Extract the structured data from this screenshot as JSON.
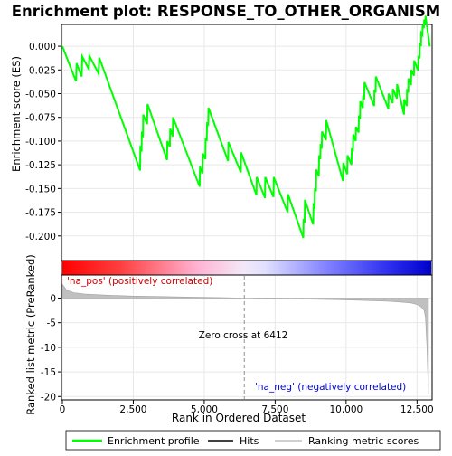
{
  "chart_data": {
    "type": "line",
    "title": "Enrichment plot: RESPONSE_TO_OTHER_ORGANISM",
    "xlabel": "Rank in Ordered Dataset",
    "ylabel_top": "Enrichment score (ES)",
    "ylabel_bottom": "Ranked list metric (PreRanked)",
    "x_range": [
      0,
      13000
    ],
    "x_ticks": [
      0,
      2500,
      5000,
      7500,
      10000,
      12500
    ],
    "x_tick_labels": [
      "0",
      "2,500",
      "5,000",
      "7,500",
      "10,000",
      "12,500"
    ],
    "es_ylim": [
      -0.225,
      0.022
    ],
    "es_ticks": [
      0.0,
      -0.025,
      -0.05,
      -0.075,
      -0.1,
      -0.125,
      -0.15,
      -0.175,
      -0.2
    ],
    "es_tick_labels": [
      "0.000",
      "-0.025",
      "-0.050",
      "-0.075",
      "-0.100",
      "-0.125",
      "-0.150",
      "-0.175",
      "-0.200"
    ],
    "metric_ylim": [
      -20.5,
      4.5
    ],
    "metric_ticks": [
      0,
      -5,
      -10,
      -15,
      -20
    ],
    "metric_tick_labels": [
      "0",
      "-5",
      "-10",
      "-15",
      "-20"
    ],
    "zero_cross_rank": 6412,
    "annotations": {
      "pos_label": "'na_pos' (positively correlated)",
      "neg_label": "'na_neg' (negatively correlated)",
      "zero_cross_label": "Zero cross at 6412"
    },
    "hits": [
      500,
      700,
      950,
      1300,
      2750,
      2800,
      2850,
      3000,
      3700,
      3800,
      3900,
      4850,
      4950,
      5050,
      5100,
      5150,
      5850,
      6300,
      6850,
      7150,
      7450,
      7950,
      8500,
      8550,
      8850,
      8900,
      8950,
      9050,
      9100,
      9150,
      9300,
      9900,
      10050,
      10200,
      10250,
      10350,
      10450,
      10500,
      10600,
      10650,
      11000,
      11050,
      11500,
      11650,
      11800,
      12050,
      12150,
      12200,
      12300,
      12400,
      12550,
      12600,
      12650,
      12700,
      12750,
      12800
    ],
    "es_profile": {
      "x": [
        0,
        480,
        500,
        680,
        700,
        930,
        950,
        1280,
        1300,
        2740,
        2750,
        2790,
        2800,
        2840,
        2850,
        2990,
        3000,
        3690,
        3700,
        3790,
        3800,
        3890,
        3900,
        4840,
        4850,
        4940,
        4950,
        5040,
        5050,
        5090,
        5100,
        5140,
        5150,
        5840,
        5850,
        6290,
        6300,
        6840,
        6850,
        7140,
        7150,
        7440,
        7450,
        7940,
        7950,
        8490,
        8500,
        8540,
        8550,
        8840,
        8850,
        8890,
        8900,
        8940,
        8950,
        9040,
        9050,
        9090,
        9100,
        9140,
        9150,
        9290,
        9300,
        9890,
        9900,
        10040,
        10050,
        10190,
        10200,
        10240,
        10250,
        10340,
        10350,
        10440,
        10450,
        10490,
        10500,
        10590,
        10600,
        10640,
        10650,
        10990,
        11000,
        11040,
        11050,
        11490,
        11500,
        11640,
        11650,
        11790,
        11800,
        12040,
        12050,
        12140,
        12150,
        12190,
        12200,
        12290,
        12300,
        12390,
        12400,
        12540,
        12550,
        12590,
        12600,
        12640,
        12650,
        12690,
        12700,
        12740,
        12750,
        12790,
        12800,
        12950
      ],
      "y": [
        0.0,
        -0.037,
        -0.018,
        -0.032,
        -0.011,
        -0.024,
        -0.01,
        -0.029,
        -0.012,
        -0.131,
        -0.105,
        -0.111,
        -0.09,
        -0.096,
        -0.072,
        -0.082,
        -0.061,
        -0.12,
        -0.1,
        -0.106,
        -0.087,
        -0.095,
        -0.075,
        -0.148,
        -0.127,
        -0.134,
        -0.113,
        -0.119,
        -0.097,
        -0.1,
        -0.08,
        -0.084,
        -0.065,
        -0.121,
        -0.101,
        -0.133,
        -0.112,
        -0.157,
        -0.138,
        -0.16,
        -0.138,
        -0.159,
        -0.138,
        -0.175,
        -0.156,
        -0.202,
        -0.182,
        -0.186,
        -0.162,
        -0.188,
        -0.168,
        -0.17,
        -0.15,
        -0.153,
        -0.13,
        -0.137,
        -0.115,
        -0.119,
        -0.103,
        -0.108,
        -0.09,
        -0.099,
        -0.078,
        -0.142,
        -0.123,
        -0.135,
        -0.115,
        -0.125,
        -0.108,
        -0.111,
        -0.093,
        -0.1,
        -0.085,
        -0.091,
        -0.073,
        -0.077,
        -0.058,
        -0.065,
        -0.052,
        -0.056,
        -0.038,
        -0.063,
        -0.046,
        -0.049,
        -0.032,
        -0.066,
        -0.05,
        -0.06,
        -0.045,
        -0.055,
        -0.04,
        -0.072,
        -0.056,
        -0.063,
        -0.045,
        -0.049,
        -0.034,
        -0.041,
        -0.025,
        -0.031,
        -0.015,
        -0.026,
        -0.01,
        -0.013,
        0.003,
        0.0,
        0.014,
        0.012,
        0.022,
        0.019,
        0.028,
        0.024,
        0.032,
        0.0
      ]
    },
    "metric_profile": {
      "x": [
        0,
        150,
        400,
        800,
        1500,
        2500,
        3500,
        4500,
        5500,
        6412,
        7500,
        8500,
        9500,
        10500,
        11500,
        12000,
        12300,
        12500,
        12650,
        12750,
        12800,
        12850,
        12900
      ],
      "y": [
        2.8,
        1.6,
        1.1,
        0.8,
        0.6,
        0.4,
        0.3,
        0.2,
        0.1,
        0.0,
        -0.1,
        -0.2,
        -0.3,
        -0.45,
        -0.65,
        -0.85,
        -1.0,
        -1.3,
        -1.8,
        -2.5,
        -4.0,
        -10.0,
        -19.5
      ]
    },
    "legend": [
      "Enrichment profile",
      "Hits",
      "Ranking metric scores"
    ],
    "colors": {
      "es_line": "#00ff00",
      "hit_line": "#000000",
      "metric_fill": "#c0c0c0",
      "zero_line": "#808080",
      "pos_text": "#cc0000",
      "neg_text": "#0000cc",
      "band_pos": "#ff0000",
      "band_neg": "#0000ff"
    }
  }
}
